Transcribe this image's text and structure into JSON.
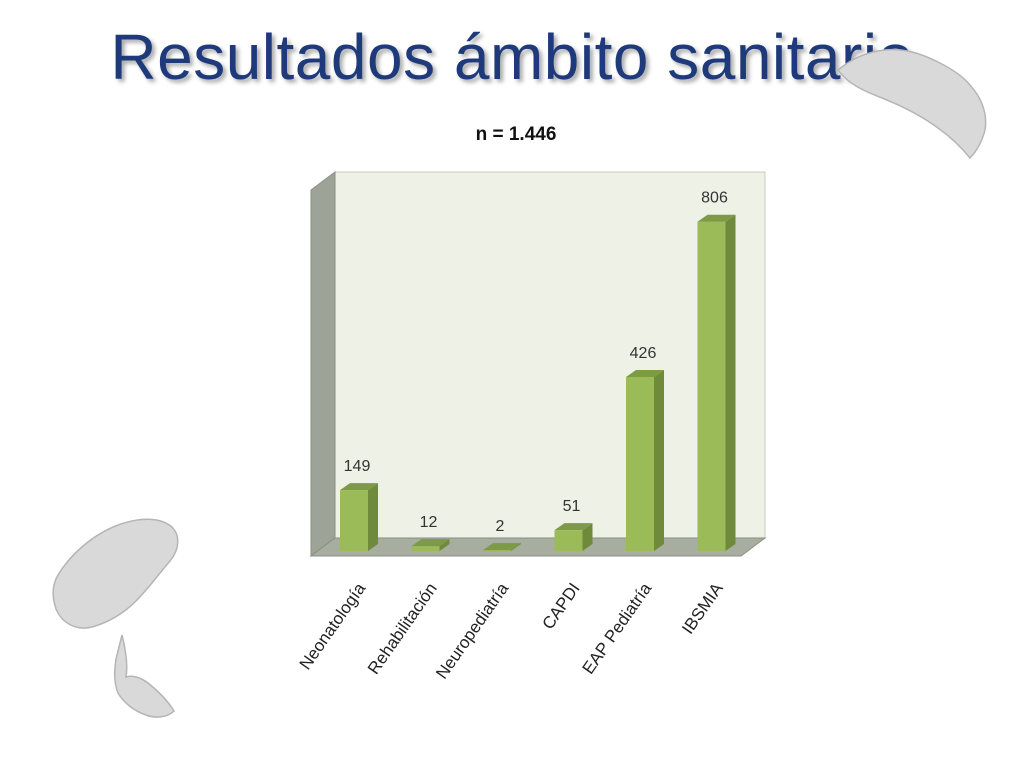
{
  "slide": {
    "title": "Resultados ámbito sanitario"
  },
  "decorations": {
    "top_right_icon": "menorca-island-silhouette",
    "bottom_left_icon": "ibiza-formentera-island-silhouette",
    "island_color": "#d9d9d9"
  },
  "chart_data": {
    "type": "bar",
    "title": "n = 1.446",
    "xlabel": "",
    "ylabel": "",
    "categories": [
      "Neonatología",
      "Rehabilitación",
      "Neuropediatría",
      "CAPDI",
      "EAP Pediatría",
      "IBSMIA"
    ],
    "values": [
      149,
      12,
      2,
      51,
      426,
      806
    ],
    "ylim": [
      0,
      900
    ],
    "grid": false,
    "legend": "none",
    "style": "3d-columns",
    "colors": {
      "bar_front": "#9bbb59",
      "bar_side": "#6e8a3a",
      "bar_top": "#7d9a44",
      "back_wall": "#eef1e6",
      "side_wall": "#9da396",
      "floor": "#a7ad9f"
    }
  }
}
